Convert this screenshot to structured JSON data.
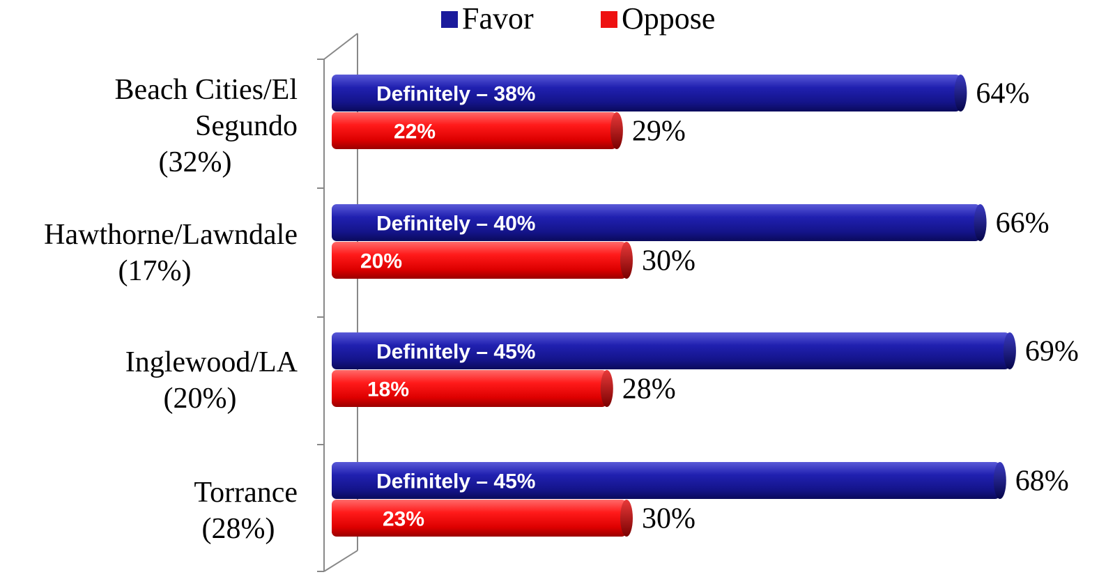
{
  "chart_data": {
    "type": "bar",
    "orientation": "horizontal",
    "legend": {
      "placement": "top",
      "entries": [
        {
          "name": "Favor",
          "color": "#1a1a9c"
        },
        {
          "name": "Oppose",
          "color": "#ee1111"
        }
      ]
    },
    "categories": [
      {
        "lines": [
          "Beach Cities/El",
          "Segundo",
          "(32%)"
        ]
      },
      {
        "lines": [
          "Hawthorne/Lawndale",
          "(17%)"
        ]
      },
      {
        "lines": [
          "Inglewood/LA",
          "(20%)"
        ]
      },
      {
        "lines": [
          "Torrance",
          "(28%)"
        ]
      }
    ],
    "series": [
      {
        "name": "Favor",
        "color": "#1a1a9c",
        "values": [
          64,
          66,
          69,
          68
        ],
        "value_labels": [
          "64%",
          "66%",
          "69%",
          "68%"
        ],
        "inner_values": [
          38,
          40,
          45,
          45
        ],
        "inner_labels": [
          "Definitely – 38%",
          "Definitely – 40%",
          "Definitely – 45%",
          "Definitely – 45%"
        ]
      },
      {
        "name": "Oppose",
        "color": "#ee1111",
        "values": [
          29,
          30,
          28,
          30
        ],
        "value_labels": [
          "29%",
          "30%",
          "28%",
          "30%"
        ],
        "inner_values": [
          22,
          20,
          18,
          23
        ],
        "inner_labels": [
          "22%",
          "20%",
          "18%",
          "23%"
        ]
      }
    ],
    "xlim": [
      0,
      100
    ],
    "grid": false
  }
}
